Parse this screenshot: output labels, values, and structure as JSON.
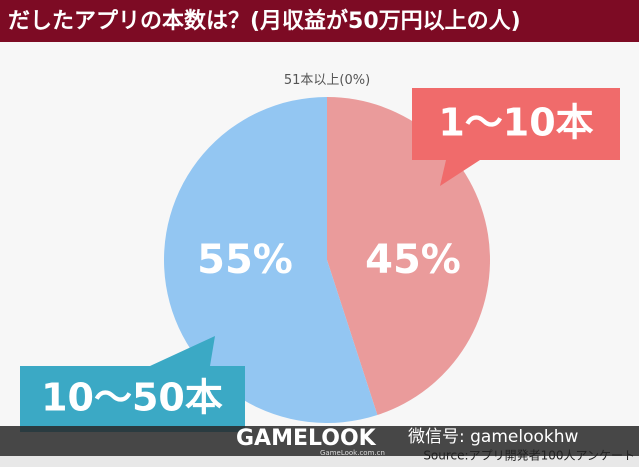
{
  "chart_data": {
    "type": "pie",
    "title": "だしたアプリの本数は？(月収益が50万円以上の人)",
    "categories": [
      "1〜10本",
      "10〜50本",
      "51本以上"
    ],
    "values": [
      45,
      55,
      0
    ],
    "value_labels": [
      "45%",
      "55%",
      "(0%)"
    ],
    "colors": [
      "#ea9b9b",
      "#93c6f2",
      "#cccccc"
    ],
    "callout_colors": [
      "#f06b6b",
      "#3ba9c5"
    ]
  },
  "watermark": {
    "brand": "GAMELOOK",
    "site": "GameLook.com.cn",
    "wechat": "微信号: gamelookhw",
    "source": "Source:アプリ開発者100人アンケート"
  }
}
